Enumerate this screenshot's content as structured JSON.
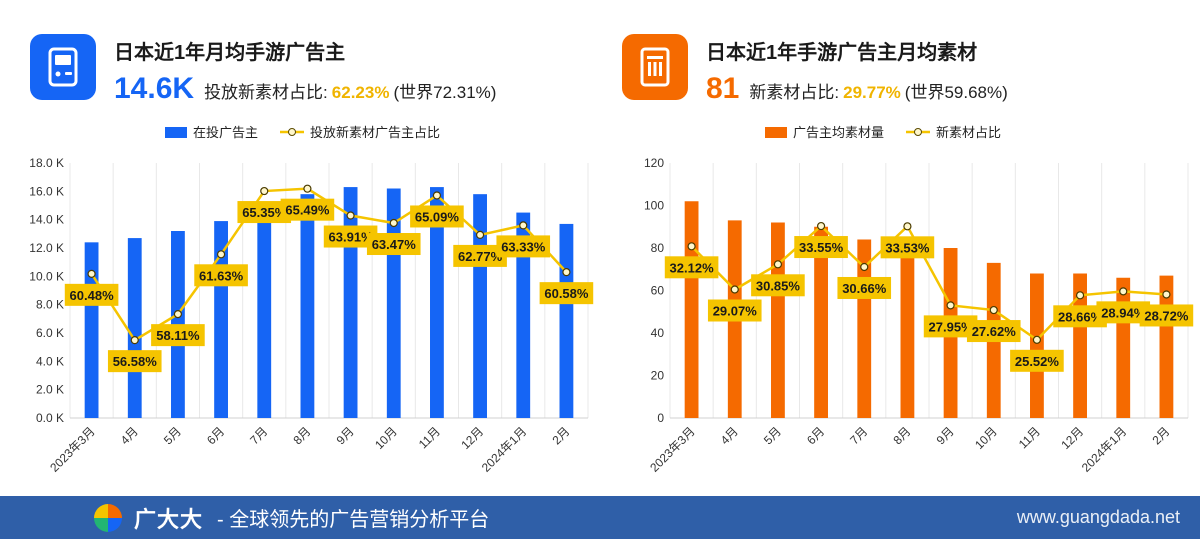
{
  "left": {
    "title": "日本近1年月均手游广告主",
    "big_value": "14.6K",
    "stat_label": "投放新素材占比:",
    "stat_pct": "62.23%",
    "stat_world": "(世界72.31%)",
    "icon": "mobile-game-icon",
    "accent": "#1565f5"
  },
  "right": {
    "title": "日本近1年手游广告主月均素材",
    "big_value": "81",
    "stat_label": "新素材占比:",
    "stat_pct": "29.77%",
    "stat_world": "(世界59.68%)",
    "icon": "creative-file-icon",
    "accent": "#f56a00"
  },
  "chart_data": [
    {
      "type": "bar",
      "categories": [
        "2023年3月",
        "4月",
        "5月",
        "6月",
        "7月",
        "8月",
        "9月",
        "10月",
        "11月",
        "12月",
        "2024年1月",
        "2月"
      ],
      "series": [
        {
          "name": "在投广告主",
          "kind": "bar",
          "axis": "left",
          "color": "#1565f5",
          "values": [
            12.4,
            12.7,
            13.2,
            13.9,
            14.5,
            15.8,
            16.3,
            16.2,
            16.3,
            15.8,
            14.5,
            13.7
          ]
        },
        {
          "name": "投放新素材广告主占比",
          "kind": "line",
          "axis": "right",
          "color": "#f5c400",
          "values": [
            60.48,
            56.58,
            58.11,
            61.63,
            65.35,
            65.49,
            63.91,
            63.47,
            65.09,
            62.77,
            63.33,
            60.58
          ],
          "labels": [
            "60.48%",
            "56.58%",
            "58.11%",
            "61.63%",
            "65.35%",
            "65.49%",
            "63.91%",
            "63.47%",
            "65.09%",
            "62.77%",
            "63.33%",
            "60.58%"
          ]
        }
      ],
      "y_ticks": [
        "0.0 K",
        "2.0 K",
        "4.0 K",
        "6.0 K",
        "8.0 K",
        "10.0 K",
        "12.0 K",
        "14.0 K",
        "16.0 K",
        "18.0 K"
      ],
      "ylim": [
        0,
        18
      ],
      "y2lim": [
        52,
        67
      ],
      "grid": "vertical",
      "legend": "top"
    },
    {
      "type": "bar",
      "categories": [
        "2023年3月",
        "4月",
        "5月",
        "6月",
        "7月",
        "8月",
        "9月",
        "10月",
        "11月",
        "12月",
        "2024年1月",
        "2月"
      ],
      "series": [
        {
          "name": "广告主均素材量",
          "kind": "bar",
          "axis": "left",
          "color": "#f56a00",
          "values": [
            102,
            93,
            92,
            90,
            84,
            85,
            80,
            73,
            68,
            68,
            66,
            67
          ]
        },
        {
          "name": "新素材占比",
          "kind": "line",
          "axis": "right",
          "color": "#f5c400",
          "values": [
            32.12,
            29.07,
            30.85,
            33.55,
            30.66,
            33.53,
            27.95,
            27.62,
            25.52,
            28.66,
            28.94,
            28.72
          ],
          "labels": [
            "32.12%",
            "29.07%",
            "30.85%",
            "33.55%",
            "30.66%",
            "33.53%",
            "27.95%",
            "27.62%",
            "25.52%",
            "28.66%",
            "28.94%",
            "28.72%"
          ]
        }
      ],
      "y_ticks": [
        "0",
        "20",
        "40",
        "60",
        "80",
        "100",
        "120"
      ],
      "ylim": [
        0,
        120
      ],
      "y2lim": [
        20,
        38
      ],
      "grid": "vertical",
      "legend": "top"
    }
  ],
  "footer": {
    "brand": "广大大",
    "slogan": "- 全球领先的广告营销分析平台",
    "url": "www.guangdada.net"
  }
}
